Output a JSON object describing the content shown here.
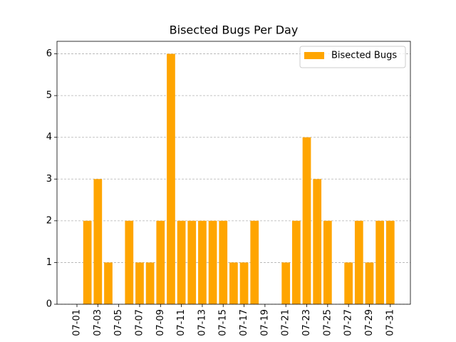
{
  "chart_data": {
    "type": "bar",
    "title": "Bisected Bugs Per Day",
    "categories": [
      "07-01",
      null,
      "07-03",
      null,
      "07-05",
      null,
      "07-07",
      null,
      "07-09",
      null,
      "07-11",
      null,
      "07-13",
      null,
      "07-15",
      null,
      "07-17",
      null,
      "07-19",
      null,
      "07-21",
      null,
      "07-23",
      null,
      "07-25",
      null,
      "07-27",
      null,
      "07-29",
      null,
      "07-31"
    ],
    "series": [
      {
        "name": "Bisected Bugs",
        "color": "#ffa500",
        "values": [
          0,
          2,
          3,
          1,
          0,
          2,
          1,
          1,
          2,
          6,
          2,
          2,
          2,
          2,
          2,
          1,
          1,
          2,
          0,
          0,
          1,
          2,
          4,
          3,
          2,
          0,
          1,
          2,
          1,
          2,
          2
        ]
      }
    ],
    "ylim": [
      0,
      6.3
    ],
    "yticks": [
      0,
      1,
      2,
      3,
      4,
      5,
      6
    ],
    "grid": true,
    "legend": "upper right"
  }
}
